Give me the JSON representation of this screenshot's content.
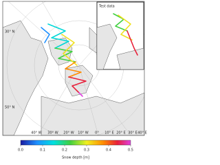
{
  "map": {
    "lat_labels": [
      "30° N",
      "50° N"
    ],
    "lon_labels": [
      "40° W",
      "30° W",
      "20° W",
      "10° W",
      "0°",
      "10° E",
      "20° E",
      "30° E",
      "40° E"
    ]
  },
  "inset": {
    "label": "Test data"
  },
  "colorbar": {
    "label": "Snow depth [m]",
    "range": [
      0,
      0.5
    ],
    "ticks": [
      {
        "value": 0,
        "label": "0.0"
      },
      0.1,
      0.2,
      0.3,
      0.4,
      0.5
    ]
  }
}
